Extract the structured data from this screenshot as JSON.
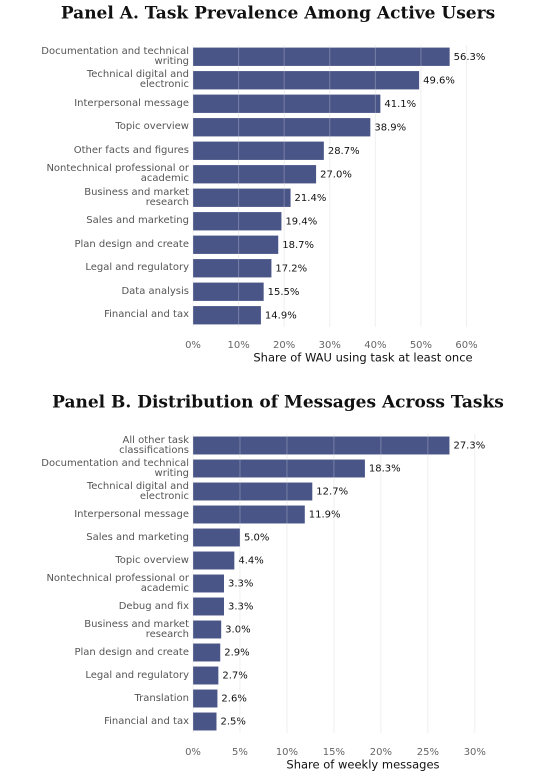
{
  "chart_data": [
    {
      "type": "barh",
      "title": "Panel A. Task Prevalence Among Active Users",
      "x_label": "Share of WAU using task at least once",
      "color": "#4a5587",
      "grid": true,
      "categories": [
        "Documentation and technical\nwriting",
        "Technical digital and\nelectronic",
        "Interpersonal message",
        "Topic overview",
        "Other facts and figures",
        "Nontechnical professional or\nacademic",
        "Business and market research",
        "Sales and marketing",
        "Plan design and create",
        "Legal and regulatory",
        "Data analysis",
        "Financial and tax"
      ],
      "values": [
        56.3,
        49.6,
        41.1,
        38.9,
        28.7,
        27.0,
        21.4,
        19.4,
        18.7,
        17.2,
        15.5,
        14.9
      ],
      "value_labels": [
        "56.3%",
        "49.6%",
        "41.1%",
        "38.9%",
        "28.7%",
        "27.0%",
        "21.4%",
        "19.4%",
        "18.7%",
        "17.2%",
        "15.5%",
        "14.9%"
      ],
      "xlim": [
        0,
        68
      ],
      "xticks": [
        {
          "value": 0,
          "label": "0%"
        },
        {
          "value": 10,
          "label": "10%"
        },
        {
          "value": 20,
          "label": "20%"
        },
        {
          "value": 30,
          "label": "30%"
        },
        {
          "value": 40,
          "label": "40%"
        },
        {
          "value": 50,
          "label": "50%"
        },
        {
          "value": 60,
          "label": "60%"
        }
      ]
    },
    {
      "type": "barh",
      "title": "Panel B. Distribution of Messages Across Tasks",
      "x_label": "Share of weekly messages",
      "color": "#4a5587",
      "grid": true,
      "categories": [
        "All other task\nclassifications",
        "Documentation and technical\nwriting",
        "Technical digital and\nelectronic",
        "Interpersonal message",
        "Sales and marketing",
        "Topic overview",
        "Nontechnical professional or\nacademic",
        "Debug and fix",
        "Business and market research",
        "Plan design and create",
        "Legal and regulatory",
        "Translation",
        "Financial and tax"
      ],
      "values": [
        27.3,
        18.3,
        12.7,
        11.9,
        5.0,
        4.4,
        3.3,
        3.3,
        3.0,
        2.9,
        2.7,
        2.6,
        2.5
      ],
      "value_labels": [
        "27.3%",
        "18.3%",
        "12.7%",
        "11.9%",
        "5.0%",
        "4.4%",
        "3.3%",
        "3.3%",
        "3.0%",
        "2.9%",
        "2.7%",
        "2.6%",
        "2.5%"
      ],
      "xlim": [
        0,
        33
      ],
      "xticks": [
        {
          "value": 0,
          "label": "0%"
        },
        {
          "value": 5,
          "label": "5%"
        },
        {
          "value": 10,
          "label": "10%"
        },
        {
          "value": 15,
          "label": "15%"
        },
        {
          "value": 20,
          "label": "20%"
        },
        {
          "value": 25,
          "label": "25%"
        },
        {
          "value": 30,
          "label": "30%"
        }
      ]
    }
  ]
}
